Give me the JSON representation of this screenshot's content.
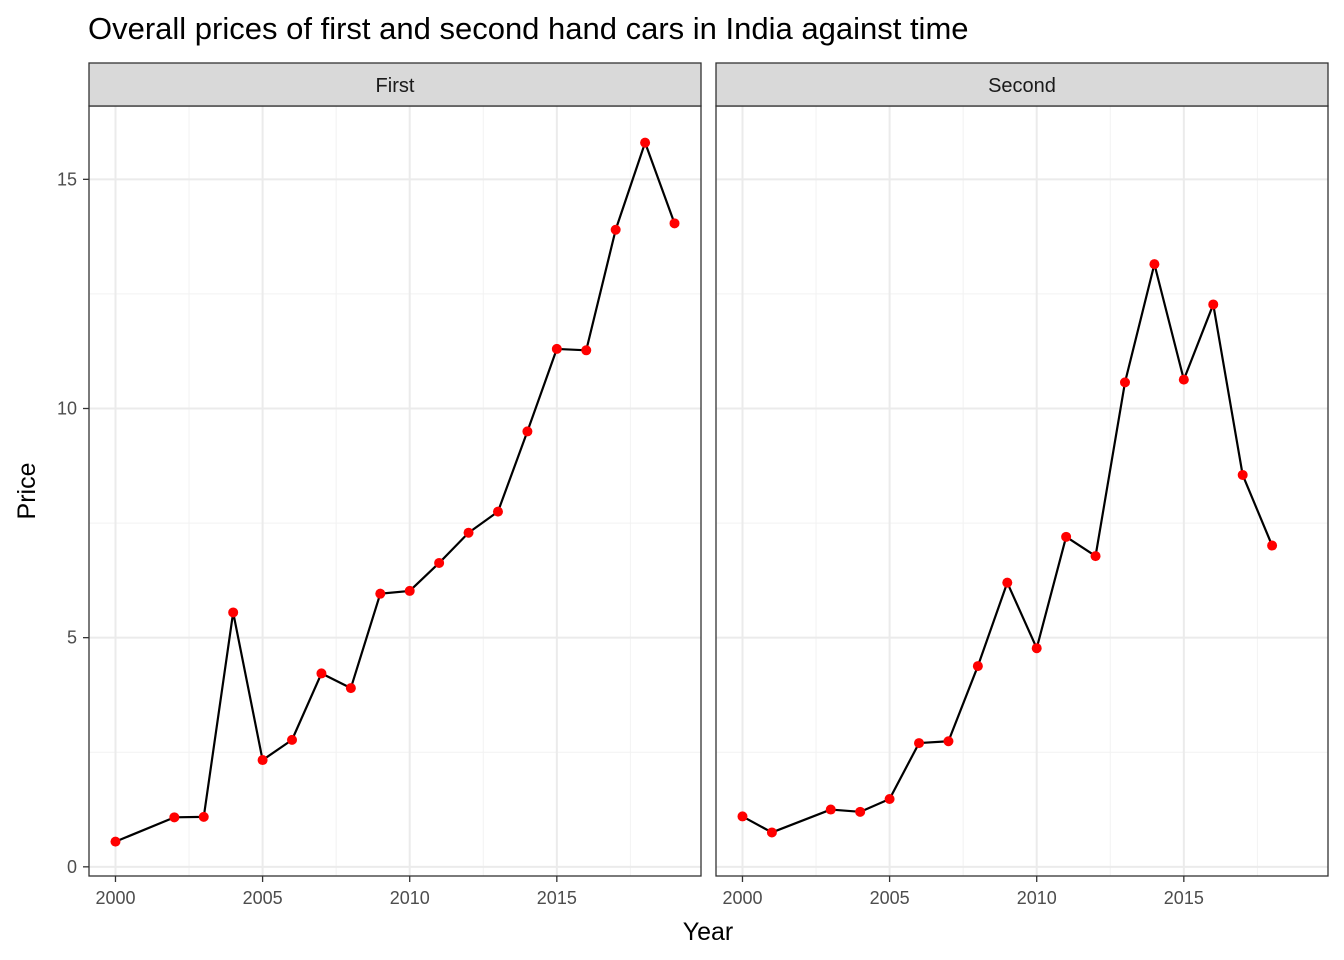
{
  "chart_data": {
    "type": "line",
    "title": "Overall prices of first and second hand cars in India against time",
    "xlabel": "Year",
    "ylabel": "Price",
    "xlim": [
      1999.1,
      2019.9
    ],
    "ylim": [
      -0.2,
      16.6
    ],
    "x_ticks": [
      2000,
      2005,
      2010,
      2015
    ],
    "y_ticks": [
      0,
      5,
      10,
      15
    ],
    "grid": true,
    "colors": {
      "line": "#000000",
      "point": "#ff0000",
      "strip": "#d9d9d9",
      "grid_major": "#ebebeb",
      "grid_minor": "#f2f2f2"
    },
    "panels": [
      {
        "label": "First",
        "x": [
          2000,
          2002,
          2003,
          2004,
          2005,
          2006,
          2007,
          2008,
          2009,
          2010,
          2011,
          2012,
          2013,
          2014,
          2015,
          2016,
          2017,
          2018,
          2019
        ],
        "y": [
          0.55,
          1.08,
          1.09,
          5.55,
          2.33,
          2.77,
          4.22,
          3.9,
          5.96,
          6.02,
          6.63,
          7.29,
          7.75,
          9.5,
          11.3,
          11.27,
          13.9,
          15.8,
          14.04
        ]
      },
      {
        "label": "Second",
        "x": [
          2000,
          2001,
          2003,
          2004,
          2005,
          2006,
          2007,
          2008,
          2009,
          2010,
          2011,
          2012,
          2013,
          2014,
          2015,
          2016,
          2017,
          2018
        ],
        "y": [
          1.1,
          0.75,
          1.25,
          1.2,
          1.48,
          2.7,
          2.74,
          4.38,
          6.2,
          4.77,
          7.2,
          6.78,
          10.57,
          13.15,
          10.63,
          12.27,
          8.55,
          7.01
        ]
      }
    ]
  }
}
